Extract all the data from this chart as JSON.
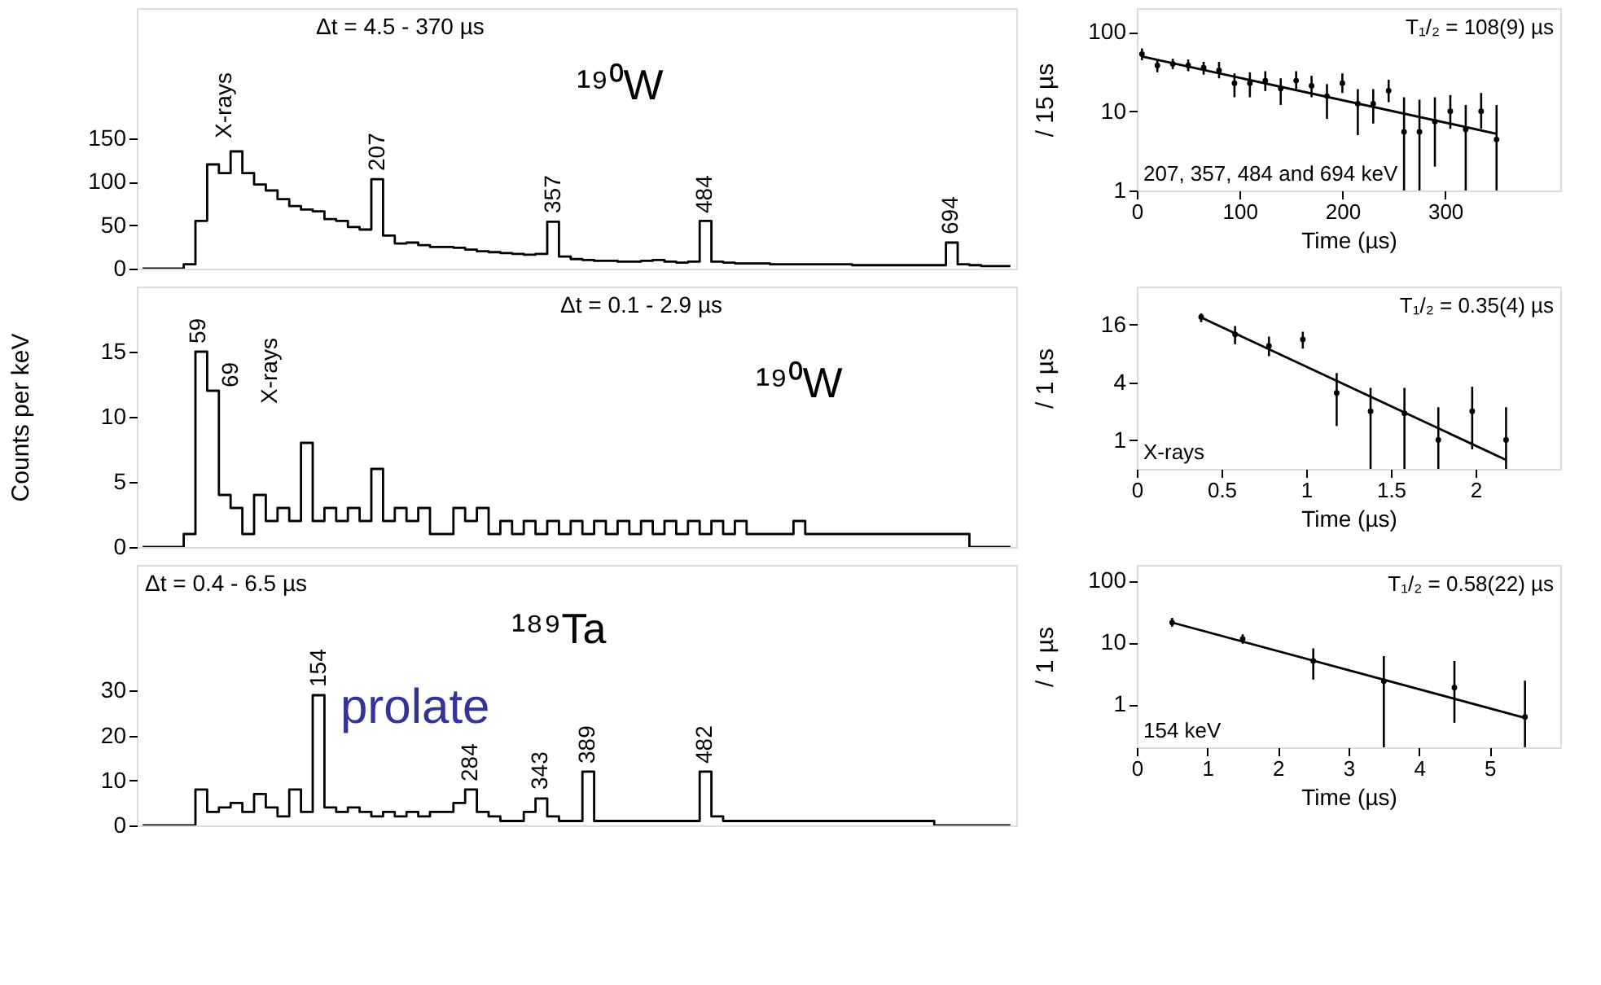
{
  "chart_data": [
    {
      "type": "step",
      "categories": [
        null,
        null,
        null,
        null,
        null,
        null,
        null,
        null,
        null,
        null,
        null,
        null,
        null,
        null,
        null,
        null,
        null,
        null,
        null,
        null,
        null,
        null,
        null,
        null,
        null,
        null,
        null,
        null,
        null,
        null,
        null,
        null,
        null,
        null,
        null,
        null,
        null,
        null,
        null,
        null,
        null,
        null,
        null,
        null,
        null,
        null,
        null,
        null,
        null,
        null,
        null,
        null,
        null,
        null,
        null,
        null,
        null,
        null,
        null,
        null,
        null,
        null,
        null,
        null,
        null,
        null,
        null,
        null,
        null,
        null,
        null,
        null,
        null,
        null,
        null
      ],
      "ylim": [
        0,
        300
      ],
      "yticks": [
        0,
        50,
        100,
        150
      ],
      "tick_labels": "y",
      "grid": false,
      "series": [
        {
          "color": "#000000",
          "values": [
            0,
            0,
            0,
            0,
            5,
            55,
            120,
            110,
            135,
            110,
            97,
            90,
            80,
            72,
            68,
            66,
            57,
            55,
            48,
            45,
            103,
            38,
            29,
            30,
            27,
            25,
            25,
            24,
            22,
            20,
            19,
            18,
            17,
            16,
            17,
            54,
            14,
            11,
            10,
            9,
            9,
            8,
            8,
            9,
            10,
            8,
            7,
            8,
            55,
            8,
            7,
            6,
            6,
            6,
            5,
            5,
            5,
            5,
            5,
            5,
            5,
            4,
            4,
            4,
            4,
            4,
            4,
            4,
            4,
            30,
            5,
            4,
            3,
            3,
            3
          ]
        }
      ],
      "annotations": [
        "Δt = 4.5 - 370 µs",
        "¹⁹⁰W",
        "X-rays",
        "207",
        "357",
        "484",
        "694"
      ]
    },
    {
      "type": "scatter",
      "xlim": [
        0,
        412
      ],
      "xticks": [
        0,
        100,
        200,
        300
      ],
      "ylim": [
        1,
        200
      ],
      "yticks": [
        1,
        10,
        100
      ],
      "log": "y",
      "grid": false,
      "xlabel": "Time (µs)",
      "ylabel": "/ 15 µs",
      "series": [
        {
          "color": "#000000",
          "marker": "circle",
          "x": [
            5,
            20,
            35,
            50,
            65,
            80,
            95,
            110,
            125,
            140,
            155,
            170,
            185,
            200,
            215,
            230,
            245,
            260,
            275,
            290,
            305,
            320,
            335,
            350
          ],
          "values": [
            52.6,
            37.8,
            39.6,
            37.8,
            35.3,
            32.7,
            22.6,
            22.6,
            24.3,
            19.4,
            24.3,
            20.9,
            15.5,
            22.6,
            12.4,
            12.4,
            18.1,
            5.5,
            5.5,
            7.4,
            10,
            5.9,
            10,
            4.4
          ],
          "errors": [
            [
              44,
              62
            ],
            [
              31,
              45
            ],
            [
              34,
              46
            ],
            [
              32,
              45
            ],
            [
              29,
              42
            ],
            [
              26,
              42
            ],
            [
              15,
              30
            ],
            [
              15,
              31
            ],
            [
              18,
              32
            ],
            [
              12,
              26
            ],
            [
              19,
              32
            ],
            [
              15,
              28
            ],
            [
              8,
              22
            ],
            [
              17,
              30
            ],
            [
              5,
              19
            ],
            [
              7,
              19
            ],
            [
              13,
              25
            ],
            [
              1,
              15
            ],
            [
              1,
              14
            ],
            [
              2,
              15
            ],
            [
              6,
              16
            ],
            [
              1,
              12
            ],
            [
              6,
              17
            ],
            [
              1,
              12
            ]
          ]
        },
        {
          "type": "line",
          "color": "#000000",
          "x": [
            5,
            350
          ],
          "values": [
            49,
            5.2
          ]
        }
      ],
      "annotations": [
        "T₁/₂ = 108(9) µs",
        "207, 357, 484 and 694 keV"
      ]
    },
    {
      "type": "step",
      "categories": [
        null,
        null,
        null,
        null,
        null,
        null,
        null,
        null,
        null,
        null,
        null,
        null,
        null,
        null,
        null,
        null,
        null,
        null,
        null,
        null,
        null,
        null,
        null,
        null,
        null,
        null,
        null,
        null,
        null,
        null,
        null,
        null,
        null,
        null,
        null,
        null,
        null,
        null,
        null,
        null,
        null,
        null,
        null,
        null,
        null,
        null,
        null,
        null,
        null,
        null,
        null,
        null,
        null,
        null,
        null,
        null,
        null,
        null,
        null,
        null,
        null,
        null,
        null,
        null,
        null,
        null,
        null,
        null,
        null,
        null,
        null,
        null,
        null,
        null,
        null
      ],
      "ylim": [
        0,
        20
      ],
      "yticks": [
        0,
        5,
        10,
        15
      ],
      "tick_labels": "y",
      "grid": false,
      "ylabel": "Counts per keV",
      "series": [
        {
          "color": "#000000",
          "values": [
            0,
            0,
            0,
            0,
            1,
            15,
            12,
            4,
            3,
            1,
            4,
            2,
            3,
            2,
            8,
            2,
            3,
            2,
            3,
            2,
            6,
            2,
            3,
            2,
            3,
            1,
            1,
            3,
            2,
            3,
            1,
            2,
            1,
            2,
            1,
            2,
            1,
            2,
            1,
            2,
            1,
            2,
            1,
            2,
            1,
            2,
            1,
            2,
            1,
            2,
            1,
            2,
            1,
            1,
            1,
            1,
            2,
            1,
            1,
            1,
            1,
            1,
            1,
            1,
            1,
            1,
            1,
            1,
            1,
            1,
            1,
            0,
            0,
            0,
            0
          ]
        }
      ],
      "annotations": [
        "Δt = 0.1 - 2.9 µs",
        "¹⁹⁰W",
        "59",
        "69",
        "X-rays"
      ]
    },
    {
      "type": "scatter",
      "xlim": [
        0,
        2.5
      ],
      "xticks": [
        0,
        0.5,
        1,
        1.5,
        2
      ],
      "ylim": [
        0.5,
        40
      ],
      "yticks": [
        1,
        4,
        16
      ],
      "log": "y",
      "grid": false,
      "xlabel": "Time (µs)",
      "ylabel": "/ 1 µs",
      "series": [
        {
          "color": "#000000",
          "marker": "circle",
          "x": [
            0.38,
            0.58,
            0.78,
            0.98,
            1.18,
            1.38,
            1.58,
            1.78,
            1.98,
            2.18
          ],
          "values": [
            19.2,
            12.7,
            9.6,
            11.2,
            3.1,
            2.0,
            1.9,
            1.0,
            2.0,
            1.0
          ],
          "errors": [
            [
              17,
              21
            ],
            [
              10,
              15.5
            ],
            [
              7.5,
              12
            ],
            [
              9,
              13.5
            ],
            [
              1.4,
              5
            ],
            [
              0.5,
              3.5
            ],
            [
              0.5,
              3.5
            ],
            [
              0.5,
              2.2
            ],
            [
              0.8,
              3.6
            ],
            [
              0.5,
              2.2
            ]
          ]
        },
        {
          "type": "line",
          "color": "#000000",
          "x": [
            0.38,
            2.18
          ],
          "values": [
            19,
            0.62
          ]
        }
      ],
      "annotations": [
        "T₁/₂ = 0.35(4) µs",
        "X-rays"
      ]
    },
    {
      "type": "step",
      "categories": [
        null,
        null,
        null,
        null,
        null,
        null,
        null,
        null,
        null,
        null,
        null,
        null,
        null,
        null,
        null,
        null,
        null,
        null,
        null,
        null,
        null,
        null,
        null,
        null,
        null,
        null,
        null,
        null,
        null,
        null,
        null,
        null,
        null,
        null,
        null,
        null,
        null,
        null,
        null,
        null,
        null,
        null,
        null,
        null,
        null,
        null,
        null,
        null,
        null,
        null,
        null,
        null,
        null,
        null,
        null,
        null,
        null,
        null,
        null,
        null,
        null,
        null,
        null,
        null,
        null,
        null,
        null,
        null,
        null,
        null,
        null,
        null,
        null,
        null,
        null
      ],
      "ylim": [
        0,
        58
      ],
      "yticks": [
        0,
        10,
        20,
        30
      ],
      "tick_labels": "y",
      "grid": false,
      "series": [
        {
          "color": "#000000",
          "values": [
            0,
            0,
            0,
            0,
            0,
            8,
            3,
            4,
            5,
            3,
            7,
            4,
            2,
            8,
            3,
            29,
            4,
            3,
            4,
            3,
            2,
            3,
            2,
            3,
            2,
            3,
            3,
            5,
            8,
            3,
            2,
            1,
            1,
            3,
            6,
            2,
            1,
            1,
            12,
            1,
            1,
            1,
            1,
            1,
            1,
            1,
            1,
            1,
            12,
            2,
            1,
            1,
            1,
            1,
            1,
            1,
            1,
            1,
            1,
            1,
            1,
            1,
            1,
            1,
            1,
            1,
            1,
            1,
            0,
            0,
            0,
            0,
            0,
            0,
            0
          ]
        }
      ],
      "annotations": [
        "Δt = 0.4 - 6.5 µs",
        "¹⁸⁹Ta",
        "prolate",
        "154",
        "284",
        "343",
        "389",
        "482"
      ]
    },
    {
      "type": "scatter",
      "xlim": [
        0,
        6
      ],
      "xticks": [
        0,
        1,
        2,
        3,
        4,
        5
      ],
      "ylim": [
        0.2,
        180
      ],
      "yticks": [
        1,
        10,
        100
      ],
      "log": "y",
      "grid": false,
      "xlabel": "Time (µs)",
      "ylabel": "/ 1 µs",
      "series": [
        {
          "color": "#000000",
          "marker": "circle",
          "x": [
            0.5,
            1.5,
            2.5,
            3.5,
            4.5,
            5.5
          ],
          "values": [
            21,
            11.4,
            5.0,
            2.35,
            1.85,
            0.62
          ],
          "errors": [
            [
              18,
              25
            ],
            [
              9.5,
              13.5
            ],
            [
              2.5,
              8
            ],
            [
              0.2,
              6
            ],
            [
              0.5,
              5
            ],
            [
              0.2,
              2.4
            ]
          ]
        },
        {
          "type": "line",
          "color": "#000000",
          "x": [
            0.5,
            5.5
          ],
          "values": [
            21,
            0.6
          ]
        }
      ],
      "annotations": [
        "T₁/₂ = 0.58(22) µs",
        "154 keV"
      ]
    }
  ]
}
